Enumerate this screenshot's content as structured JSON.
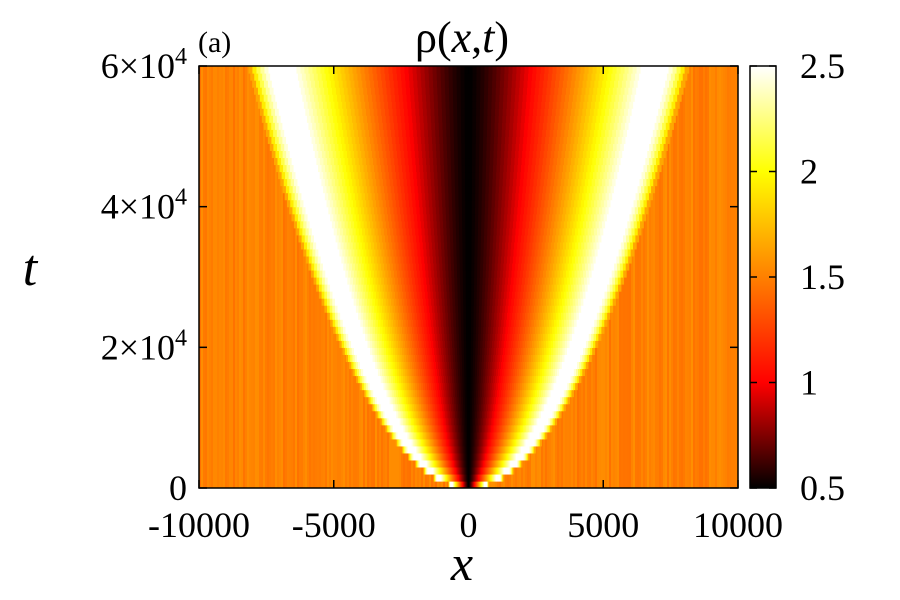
{
  "panel_label": "(a)",
  "chart_data": {
    "type": "heatmap",
    "title_prefix": "ρ(",
    "title_x": "x",
    "title_sep": ",",
    "title_t": "t",
    "title_suffix": ")",
    "xlabel": "x",
    "ylabel": "t",
    "xlim": [
      -10000,
      10000
    ],
    "ylim": [
      0,
      60000
    ],
    "x_ticks": [
      {
        "value": -10000,
        "label": "-10000"
      },
      {
        "value": -5000,
        "label": "-5000"
      },
      {
        "value": 0,
        "label": "0"
      },
      {
        "value": 5000,
        "label": "5000"
      },
      {
        "value": 10000,
        "label": "10000"
      }
    ],
    "y_ticks": [
      {
        "value": 0,
        "mant": "0",
        "exp": ""
      },
      {
        "value": 20000,
        "mant": "2×10",
        "exp": "4"
      },
      {
        "value": 40000,
        "mant": "4×10",
        "exp": "4"
      },
      {
        "value": 60000,
        "mant": "6×10",
        "exp": "4"
      }
    ],
    "colorbar": {
      "range": [
        0.5,
        2.5
      ],
      "ticks": [
        {
          "value": 0.5,
          "label": "0.5"
        },
        {
          "value": 1,
          "label": "1"
        },
        {
          "value": 1.5,
          "label": "1.5"
        },
        {
          "value": 2,
          "label": "2"
        },
        {
          "value": 2.5,
          "label": "2.5"
        }
      ],
      "colors": [
        "#000000",
        "#ff0000",
        "#ff8000",
        "#ffff00",
        "#ffffff"
      ]
    },
    "background_value": 1.5,
    "center_value": 0.5,
    "front_value": 2.5,
    "front_x_at_tmax": 8200
  }
}
